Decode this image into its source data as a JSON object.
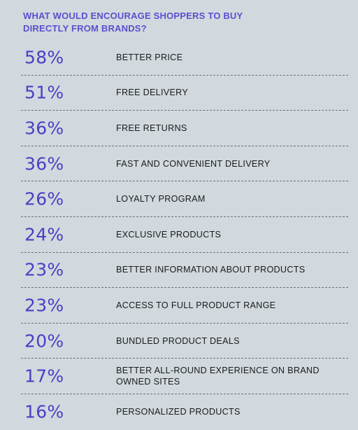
{
  "colors": {
    "background": "#dfe6ea",
    "accent": "#5b4fd0",
    "percent": "#4a3fc4",
    "text": "#1b1b1b",
    "divider": "#6d7378"
  },
  "chart_data": {
    "type": "table",
    "title": "WHAT WOULD ENCOURAGE SHOPPERS TO BUY DIRECTLY FROM BRANDS?",
    "rows": [
      {
        "value": "58%",
        "label": "BETTER PRICE"
      },
      {
        "value": "51%",
        "label": "FREE DELIVERY"
      },
      {
        "value": "36%",
        "label": "FREE RETURNS"
      },
      {
        "value": "36%",
        "label": "FAST AND CONVENIENT DELIVERY"
      },
      {
        "value": "26%",
        "label": "LOYALTY PROGRAM"
      },
      {
        "value": "24%",
        "label": "EXCLUSIVE PRODUCTS"
      },
      {
        "value": "23%",
        "label": "BETTER INFORMATION ABOUT PRODUCTS"
      },
      {
        "value": "23%",
        "label": "ACCESS TO FULL PRODUCT RANGE"
      },
      {
        "value": "20%",
        "label": "BUNDLED PRODUCT DEALS"
      },
      {
        "value": "17%",
        "label": "BETTER ALL-ROUND EXPERIENCE ON BRAND OWNED SITES"
      },
      {
        "value": "16%",
        "label": "PERSONALIZED PRODUCTS"
      }
    ]
  }
}
